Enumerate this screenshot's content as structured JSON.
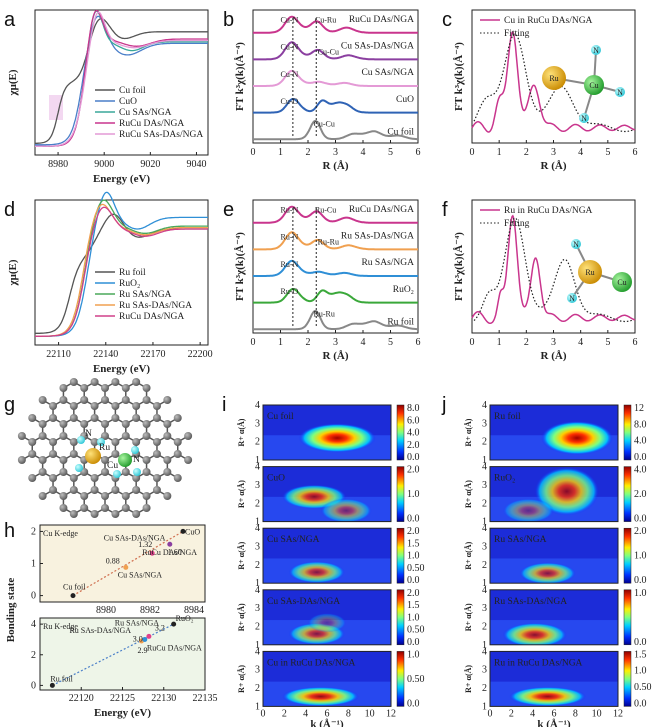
{
  "panels": [
    "a",
    "b",
    "c",
    "d",
    "e",
    "f",
    "g",
    "h",
    "i",
    "j"
  ],
  "chart_data": [
    {
      "id": "a",
      "type": "line",
      "xlabel": "Energy (eV)",
      "ylabel": "χμ(E)",
      "xlim": [
        8970,
        9045
      ],
      "xticks": [
        8980,
        9000,
        9020,
        9040
      ],
      "legend": [
        "Cu foil",
        "CuO",
        "Cu SAs/NGA",
        "RuCu DAs/NGA",
        "RuCu SAs-DAs/NGA"
      ],
      "colors": [
        "#555555",
        "#4a7fc9",
        "#3aa79a",
        "#c9358d",
        "#e49ad6"
      ]
    },
    {
      "id": "b",
      "type": "line",
      "xlabel": "R (Å)",
      "ylabel": "FT k³χ(k)(Å⁻⁴)",
      "xlim": [
        0,
        6
      ],
      "xticks": [
        0,
        1,
        2,
        3,
        4,
        5,
        6
      ],
      "series": [
        "RuCu DAs/NGA",
        "Cu SAs-DAs/NGA",
        "Cu SAs/NGA",
        "CuO",
        "Cu foil"
      ],
      "colors": [
        "#c9358d",
        "#8b3fa0",
        "#e49ad6",
        "#2f63b5",
        "#888888"
      ],
      "annotations": [
        "Cu-N",
        "Cu-Ru",
        "Cu-N",
        "Cu-Cu",
        "Cu-N",
        "Cu-O",
        "Cu-Cu"
      ]
    },
    {
      "id": "c",
      "type": "line",
      "xlabel": "R (Å)",
      "ylabel": "FT k³χ(k)(Å⁻⁴)",
      "xlim": [
        0,
        6
      ],
      "xticks": [
        0,
        1,
        2,
        3,
        4,
        5,
        6
      ],
      "legend": [
        "Cu in RuCu DAs/NGA",
        "Fitting"
      ],
      "inset_labels": [
        "Ru",
        "Cu",
        "N",
        "N",
        "N"
      ]
    },
    {
      "id": "d",
      "type": "line",
      "xlabel": "Energy (eV)",
      "ylabel": "χμ(E)",
      "xlim": [
        22095,
        22205
      ],
      "xticks": [
        22110,
        22140,
        22170,
        22200
      ],
      "legend": [
        "Ru foil",
        "RuO₂",
        "Ru SAs/NGA",
        "Ru SAs-DAs/NGA",
        "RuCu DAs/NGA"
      ],
      "colors": [
        "#555555",
        "#2f8fd6",
        "#4aa85a",
        "#f0a050",
        "#d0408a"
      ]
    },
    {
      "id": "e",
      "type": "line",
      "xlabel": "R (Å)",
      "ylabel": "FT k³χ(k)(Å⁻⁴)",
      "xlim": [
        0,
        6
      ],
      "xticks": [
        0,
        1,
        2,
        3,
        4,
        5,
        6
      ],
      "series": [
        "RuCu DAs/NGA",
        "Ru SAs-DAs/NGA",
        "Ru SAs/NGA",
        "RuO₂",
        "Ru foil"
      ],
      "colors": [
        "#c9358d",
        "#f0a050",
        "#2f8fd6",
        "#3aa83a",
        "#888888"
      ],
      "annotations": [
        "Ru-N",
        "Ru-Cu",
        "Ru-N",
        "Ru-Ru",
        "Ru-N",
        "Ru-O",
        "Ru-Ru"
      ]
    },
    {
      "id": "f",
      "type": "line",
      "xlabel": "R (Å)",
      "ylabel": "FT k³χ(k)(Å⁻⁴)",
      "xlim": [
        0,
        6
      ],
      "xticks": [
        0,
        1,
        2,
        3,
        4,
        5,
        6
      ],
      "legend": [
        "Ru in RuCu DAs/NGA",
        "Fitting"
      ],
      "inset_labels": [
        "N",
        "Ru",
        "Cu",
        "N"
      ]
    },
    {
      "id": "g",
      "type": "diagram",
      "labels": [
        "N",
        "Ru",
        "Cu",
        "N"
      ]
    },
    {
      "id": "h",
      "type": "scatter",
      "xlabel": "Energy (eV)",
      "ylabel": "Bonding state",
      "top": {
        "title": "Cu K-edge",
        "xlim": [
          8977,
          8984.5
        ],
        "xticks": [
          8980,
          8982,
          8984
        ],
        "ylim": [
          -0.2,
          2.2
        ],
        "yticks": [
          0,
          1,
          2
        ],
        "points": [
          {
            "x": 8978.5,
            "y": 0,
            "label": "Cu foil",
            "color": "#222222"
          },
          {
            "x": 8980.9,
            "y": 0.88,
            "value": "0.88",
            "label": "Cu SAs/NGA",
            "color": "#f0a050"
          },
          {
            "x": 8982.1,
            "y": 1.32,
            "value": "1.32",
            "label": "RuCu DAs/NGA",
            "color": "#e0408a"
          },
          {
            "x": 8982.9,
            "y": 1.6,
            "value": "1.60",
            "label": "Cu SAs-DAs/NGA",
            "color": "#8b3fa0"
          },
          {
            "x": 8983.5,
            "y": 2,
            "label": "CuO",
            "color": "#222222"
          }
        ]
      },
      "bottom": {
        "title": "Ru K-edge",
        "xlim": [
          22115,
          22135
        ],
        "xticks": [
          22120,
          22125,
          22130,
          22135
        ],
        "ylim": [
          -0.3,
          4.4
        ],
        "yticks": [
          0,
          2,
          4
        ],
        "points": [
          {
            "x": 22116.5,
            "y": 0,
            "label": "Ru foil",
            "color": "#222222"
          },
          {
            "x": 22127.3,
            "y": 2.9,
            "value": "2.9",
            "label": "Ru SAs-DAs/NGA",
            "color": "#f0a050"
          },
          {
            "x": 22127.7,
            "y": 3.0,
            "value": "3.0",
            "label": "Ru SAs/NGA",
            "color": "#2f8fd6"
          },
          {
            "x": 22128.2,
            "y": 3.2,
            "value": "3.2",
            "label": "RuCu DAs/NGA",
            "color": "#e0408a"
          },
          {
            "x": 22131.2,
            "y": 4,
            "label": "RuO₂",
            "color": "#222222"
          }
        ]
      }
    },
    {
      "id": "i",
      "type": "heatmap",
      "xlabel": "k (Å⁻¹)",
      "ylabel": "R+ α(Å)",
      "xlim": [
        0,
        12
      ],
      "xticks": [
        0,
        2,
        4,
        6,
        8,
        10,
        12
      ],
      "ylim": [
        1,
        4
      ],
      "yticks": [
        1,
        2,
        3,
        4
      ],
      "maps": [
        {
          "name": "Cu foil",
          "cbar": [
            "8.0",
            "6.0",
            "4.0",
            "2.0",
            "0.0"
          ]
        },
        {
          "name": "CuO",
          "cbar": [
            "2.0",
            "1.0",
            "0.0"
          ]
        },
        {
          "name": "Cu SAs/NGA",
          "cbar": [
            "2.0",
            "1.5",
            "1.0",
            "0.50",
            "0.0"
          ]
        },
        {
          "name": "Cu SAs-DAs/NGA",
          "cbar": [
            "2.0",
            "1.5",
            "1.0",
            "0.50",
            "0.0"
          ]
        },
        {
          "name": "Cu in RuCu DAs/NGA",
          "cbar": [
            "1.0",
            "0.50",
            "0.0"
          ]
        }
      ]
    },
    {
      "id": "j",
      "type": "heatmap",
      "xlabel": "k (Å⁻¹)",
      "ylabel": "R+ α(Å)",
      "xlim": [
        0,
        12
      ],
      "xticks": [
        0,
        2,
        4,
        6,
        8,
        10,
        12
      ],
      "ylim": [
        1,
        4
      ],
      "yticks": [
        1,
        2,
        3,
        4
      ],
      "maps": [
        {
          "name": "Ru foil",
          "cbar": [
            "12",
            "8.0",
            "4.0",
            "0.0"
          ]
        },
        {
          "name": "RuO₂",
          "cbar": [
            "4.0",
            "2.0",
            "0.0"
          ]
        },
        {
          "name": "Ru SAs/NGA",
          "cbar": [
            "2.0",
            "1.0",
            "0.0"
          ]
        },
        {
          "name": "Ru SAs-DAs/NGA",
          "cbar": [
            "1.0",
            "0.0"
          ]
        },
        {
          "name": "Ru in RuCu DAs/NGA",
          "cbar": [
            "1.5",
            "1.0",
            "0.50",
            "0.0"
          ]
        }
      ]
    }
  ]
}
